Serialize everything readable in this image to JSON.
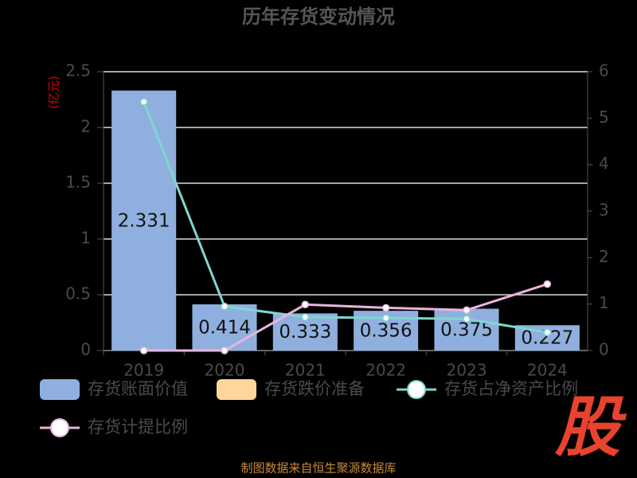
{
  "chart_data": {
    "type": "bar",
    "title": "历年存货变动情况",
    "y_label": "(亿元)",
    "source": "制图数据来自恒生聚源数据库",
    "logo": "股",
    "categories": [
      "2019",
      "2020",
      "2021",
      "2022",
      "2023",
      "2024"
    ],
    "series": [
      {
        "name": "存货账面价值",
        "type": "bar",
        "color": "#8fb0de",
        "values": [
          2.331,
          0.414,
          0.333,
          0.356,
          0.375,
          0.227
        ]
      },
      {
        "name": "存货跌价准备",
        "type": "bar",
        "color": "#ffd699",
        "values": [
          null,
          null,
          null,
          null,
          null,
          null
        ]
      },
      {
        "name": "存货占净资产比例",
        "type": "line",
        "axis": "y2",
        "color": "#7fd6d1",
        "values": [
          5.35,
          0.95,
          0.72,
          0.7,
          0.68,
          0.39
        ]
      },
      {
        "name": "存货计提比例",
        "type": "line",
        "axis": "y2",
        "color": "#e8b4dc",
        "values": [
          0,
          0,
          0.99,
          0.92,
          0.87,
          1.43
        ]
      }
    ],
    "ylim": [
      0,
      2.5
    ],
    "yticks": [
      0,
      0.5,
      1,
      1.5,
      2,
      2.5
    ],
    "y2lim": [
      0,
      6
    ],
    "y2ticks": [
      0,
      1,
      2,
      3,
      4,
      5,
      6
    ],
    "grid": true
  }
}
